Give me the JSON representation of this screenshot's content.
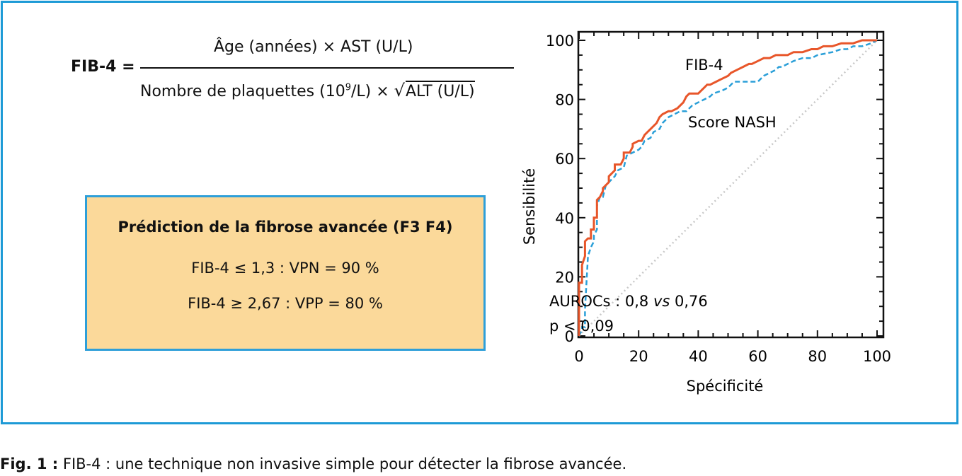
{
  "formula": {
    "lhs": "FIB-4 =",
    "numerator": "Âge (années) × AST (U/L)",
    "denominator_prefix": "Nombre de plaquettes (10",
    "denominator_exp": "9",
    "denominator_mid": "/L) × ",
    "sqrt_symbol": "√",
    "sqrt_content": "ALT (U/L)"
  },
  "prediction_box": {
    "title": "Prédiction de la fibrose avancée (F3 F4)",
    "line1": "FIB-4 ≤ 1,3 : VPN = 90 %",
    "line2": "FIB-4 ≥ 2,67 : VPP = 80 %"
  },
  "caption": {
    "label": "Fig. 1 :",
    "text": " FIB-4 : une technique non invasive simple pour détecter la fibrose avancée."
  },
  "colors": {
    "frame": "#1d9ad6",
    "box_fill": "#fbd99a",
    "box_border": "#2e9fd9",
    "fib4_line": "#e8562a",
    "nash_line": "#2a9fd8",
    "diagonal": "#c8c8c8"
  },
  "chart_data": {
    "type": "line",
    "xlabel": "Spécificité",
    "ylabel": "Sensibilité",
    "xlim": [
      0,
      100
    ],
    "ylim": [
      0,
      100
    ],
    "x_ticks": [
      "0",
      "20",
      "40",
      "60",
      "80",
      "100"
    ],
    "y_ticks": [
      "0",
      "20",
      "40",
      "60",
      "80",
      "100"
    ],
    "grid": false,
    "series": [
      {
        "name": "FIB-4",
        "style": "solid",
        "x": [
          0,
          0,
          1,
          1,
          2,
          2,
          3,
          4,
          4,
          5,
          5,
          6,
          6,
          7,
          8,
          8,
          9,
          10,
          10,
          12,
          12,
          14,
          15,
          15,
          17,
          18,
          18,
          20,
          21,
          22,
          23,
          24,
          25,
          26,
          27,
          28,
          30,
          31,
          33,
          35,
          36,
          37,
          38,
          40,
          41,
          42,
          43,
          44,
          46,
          48,
          50,
          51,
          53,
          55,
          57,
          58,
          60,
          62,
          64,
          66,
          68,
          70,
          72,
          75,
          78,
          80,
          82,
          85,
          88,
          90,
          92,
          95,
          97,
          100
        ],
        "y": [
          0,
          18,
          18,
          24,
          27,
          32,
          33,
          33,
          36,
          36,
          40,
          40,
          46,
          47,
          49,
          50,
          51,
          52,
          54,
          56,
          58,
          58,
          60,
          62,
          62,
          64,
          65,
          66,
          66,
          68,
          69,
          70,
          71,
          72,
          74,
          75,
          76,
          76,
          77,
          79,
          81,
          82,
          82,
          82,
          83,
          84,
          85,
          85,
          86,
          87,
          88,
          89,
          90,
          91,
          92,
          92,
          93,
          94,
          94,
          95,
          95,
          95,
          96,
          96,
          97,
          97,
          98,
          98,
          99,
          99,
          99,
          100,
          100,
          100
        ]
      },
      {
        "name": "Score NASH",
        "style": "dashed",
        "x": [
          0,
          1,
          1,
          2,
          2,
          3,
          4,
          5,
          5,
          6,
          6,
          7,
          8,
          9,
          10,
          12,
          13,
          15,
          16,
          18,
          20,
          21,
          22,
          24,
          25,
          27,
          28,
          30,
          32,
          34,
          36,
          37,
          38,
          40,
          42,
          44,
          45,
          48,
          50,
          52,
          55,
          58,
          60,
          62,
          64,
          66,
          67,
          68,
          70,
          72,
          75,
          78,
          80,
          85,
          88,
          90,
          92,
          95,
          98,
          100
        ],
        "y": [
          0,
          2,
          3,
          3,
          9,
          27,
          30,
          32,
          34,
          36,
          44,
          47,
          47,
          51,
          52,
          54,
          56,
          57,
          61,
          62,
          63,
          64,
          66,
          67,
          69,
          70,
          72,
          74,
          75,
          76,
          76,
          77,
          78,
          79,
          80,
          81,
          82,
          83,
          84,
          86,
          86,
          86,
          86,
          88,
          89,
          90,
          91,
          91,
          92,
          93,
          94,
          94,
          95,
          96,
          97,
          97,
          98,
          98,
          99,
          100
        ]
      },
      {
        "name": "",
        "style": "dotted",
        "x": [
          0,
          100
        ],
        "y": [
          0,
          100
        ]
      }
    ],
    "annotations": {
      "fib4_label": "FIB-4",
      "nash_label": "Score NASH",
      "auroc": "AUROCs : 0,8 ",
      "auroc_vs": "vs",
      "auroc_tail": " 0,76",
      "pvalue": "p < 0,09"
    }
  }
}
